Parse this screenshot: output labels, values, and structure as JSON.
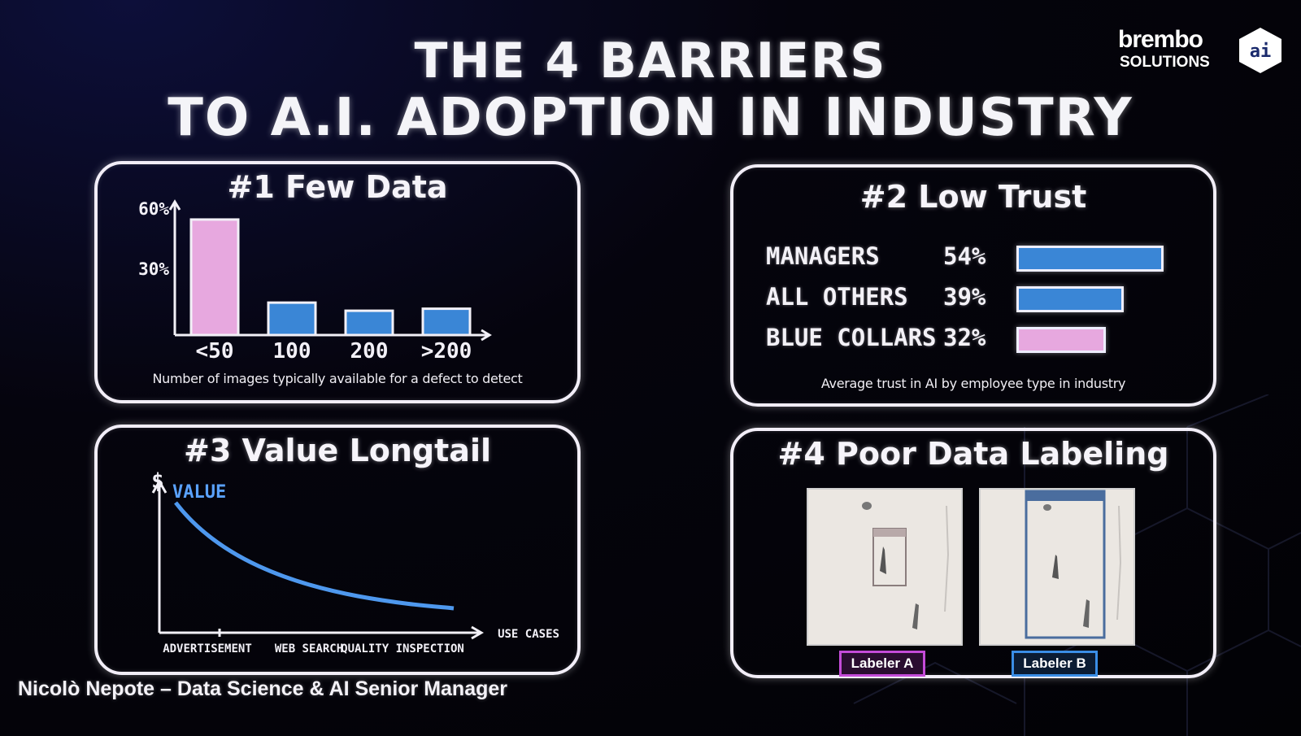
{
  "slide": {
    "title_line1": "THE 4 BARRIERS",
    "title_line2": "TO A.I. ADOPTION IN INDUSTRY",
    "footer": "Nicolò Nepote – Data Science & AI Senior Manager"
  },
  "logo": {
    "line1": "brembo",
    "line2": "SOLUTIONS",
    "icon": "brembo-ai-hexagon-icon"
  },
  "colors": {
    "accent_blue": "#3a86d6",
    "accent_pink": "#e7a8df",
    "labeler_a": "#c44bd8",
    "labeler_b": "#3a8ee6"
  },
  "panel1": {
    "title": "#1 Few Data",
    "caption": "Number of images typically available for a defect to detect",
    "chart_data": {
      "type": "bar",
      "categories": [
        "<50",
        "100",
        "200",
        ">200"
      ],
      "values": [
        57,
        16,
        12,
        13
      ],
      "y_ticks": [
        "30%",
        "60%"
      ],
      "ylim": [
        0,
        65
      ],
      "colors": [
        "#e7a8df",
        "#3a86d6",
        "#3a86d6",
        "#3a86d6"
      ]
    }
  },
  "panel2": {
    "title": "#2 Low Trust",
    "caption": "Average trust in AI by employee type in industry",
    "rows": [
      {
        "label": "MANAGERS",
        "pct": "54%",
        "value": 54,
        "color": "#3a86d6"
      },
      {
        "label": "ALL OTHERS",
        "pct": "39%",
        "value": 39,
        "color": "#3a86d6"
      },
      {
        "label": "BLUE COLLARS",
        "pct": "32%",
        "value": 32,
        "color": "#e7a8df"
      }
    ]
  },
  "panel3": {
    "title": "#3 Value Longtail",
    "y_symbol": "$",
    "curve_label": "VALUE",
    "x_ticks": [
      "ADVERTISEMENT",
      "WEB SEARCH",
      "QUALITY INSPECTION"
    ],
    "x_end_label": "USE CASES"
  },
  "panel4": {
    "title": "#4 Poor Data Labeling",
    "labeler_a": "Labeler A",
    "labeler_b": "Labeler B"
  }
}
